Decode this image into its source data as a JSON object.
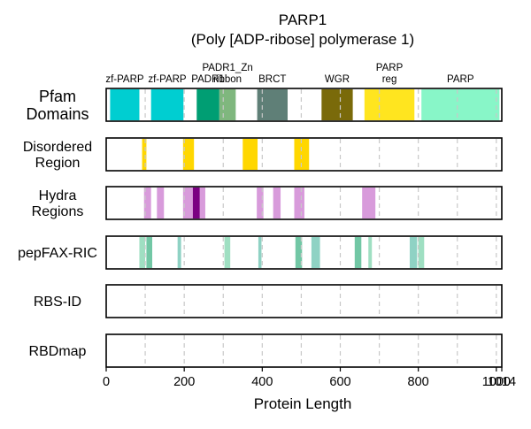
{
  "chart_data": {
    "type": "domain-track",
    "title": "PARP1",
    "subtitle": "(Poly [ADP-ribose] polymerase 1)",
    "xlabel": "Protein Length",
    "xlim": [
      0,
      1014
    ],
    "xticks": [
      0,
      200,
      400,
      600,
      800,
      1000
    ],
    "end_tick": 1014,
    "grid": true,
    "tracks": [
      {
        "name": "Pfam\nDomains",
        "segments": [
          {
            "start": 10,
            "end": 85,
            "color": "#00CED1",
            "label": "zf-PARP"
          },
          {
            "start": 115,
            "end": 198,
            "color": "#00CED1",
            "label": "zf-PARP"
          },
          {
            "start": 232,
            "end": 290,
            "color": "#009E73",
            "label": "PADR1"
          },
          {
            "start": 290,
            "end": 332,
            "color": "#7FB77E",
            "label": "PADR1_Zn\nribbon"
          },
          {
            "start": 387,
            "end": 465,
            "color": "#5F7F77",
            "label": "BRCT"
          },
          {
            "start": 552,
            "end": 632,
            "color": "#7A6A0A",
            "label": "WGR"
          },
          {
            "start": 662,
            "end": 790,
            "color": "#FFE51F",
            "label": "PARP\nreg"
          },
          {
            "start": 808,
            "end": 1008,
            "color": "#88F6C8",
            "label": "PARP"
          }
        ]
      },
      {
        "name": "Disordered\nRegion",
        "segments": [
          {
            "start": 92,
            "end": 103,
            "color": "#FFD700"
          },
          {
            "start": 197,
            "end": 225,
            "color": "#FFD700"
          },
          {
            "start": 350,
            "end": 388,
            "color": "#FFD700"
          },
          {
            "start": 482,
            "end": 520,
            "color": "#FFD700"
          }
        ]
      },
      {
        "name": "Hydra\nRegions",
        "segments": [
          {
            "start": 97,
            "end": 115,
            "color": "#D89BDB"
          },
          {
            "start": 130,
            "end": 148,
            "color": "#D89BDB"
          },
          {
            "start": 197,
            "end": 222,
            "color": "#D89BDB"
          },
          {
            "start": 222,
            "end": 240,
            "color": "#7B0082"
          },
          {
            "start": 240,
            "end": 254,
            "color": "#D89BDB"
          },
          {
            "start": 386,
            "end": 403,
            "color": "#D89BDB"
          },
          {
            "start": 428,
            "end": 447,
            "color": "#D89BDB"
          },
          {
            "start": 482,
            "end": 508,
            "color": "#D89BDB"
          },
          {
            "start": 656,
            "end": 690,
            "color": "#D89BDB"
          }
        ]
      },
      {
        "name": "pepFAX-RIC",
        "segments": [
          {
            "start": 85,
            "end": 100,
            "color": "#9FDFC2"
          },
          {
            "start": 103,
            "end": 118,
            "color": "#72C7A5"
          },
          {
            "start": 183,
            "end": 192,
            "color": "#8FD2C4"
          },
          {
            "start": 303,
            "end": 318,
            "color": "#9FDFC2"
          },
          {
            "start": 390,
            "end": 398,
            "color": "#8FD2C4"
          },
          {
            "start": 485,
            "end": 502,
            "color": "#72C7A5"
          },
          {
            "start": 526,
            "end": 548,
            "color": "#8FD2C4"
          },
          {
            "start": 637,
            "end": 654,
            "color": "#72C7A5"
          },
          {
            "start": 672,
            "end": 681,
            "color": "#9FDFC2"
          },
          {
            "start": 778,
            "end": 797,
            "color": "#8FD2C4"
          },
          {
            "start": 800,
            "end": 815,
            "color": "#9FDFC2"
          }
        ]
      },
      {
        "name": "RBS-ID",
        "segments": []
      },
      {
        "name": "RBDmap",
        "segments": []
      }
    ]
  }
}
